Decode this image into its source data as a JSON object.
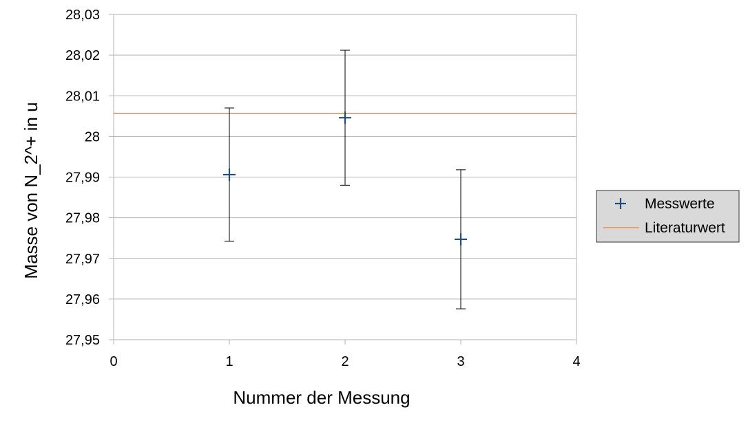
{
  "chart_data": {
    "type": "scatter",
    "xlabel": "Nummer der Messung",
    "ylabel": "Masse von N_2^+ in u",
    "xlim": [
      0,
      4
    ],
    "ylim": [
      27.95,
      28.03
    ],
    "x_ticks": [
      "0",
      "1",
      "2",
      "3",
      "4"
    ],
    "y_ticks": [
      "27,95",
      "27,96",
      "27,97",
      "27,98",
      "27,99",
      "28",
      "28,01",
      "28,02",
      "28,03"
    ],
    "grid": "horizontal",
    "legend_position": "right",
    "series": [
      {
        "name": "Messwerte",
        "marker": "plus",
        "color": "#1f4e79",
        "points": [
          {
            "x": 1,
            "y": 27.9906,
            "err": 0.0164
          },
          {
            "x": 2,
            "y": 28.0046,
            "err": 0.0166
          },
          {
            "x": 3,
            "y": 27.9747,
            "err": 0.0171
          }
        ]
      },
      {
        "name": "Literaturwert",
        "type": "hline",
        "color": "#ff7f50",
        "y": 28.0056
      }
    ]
  }
}
